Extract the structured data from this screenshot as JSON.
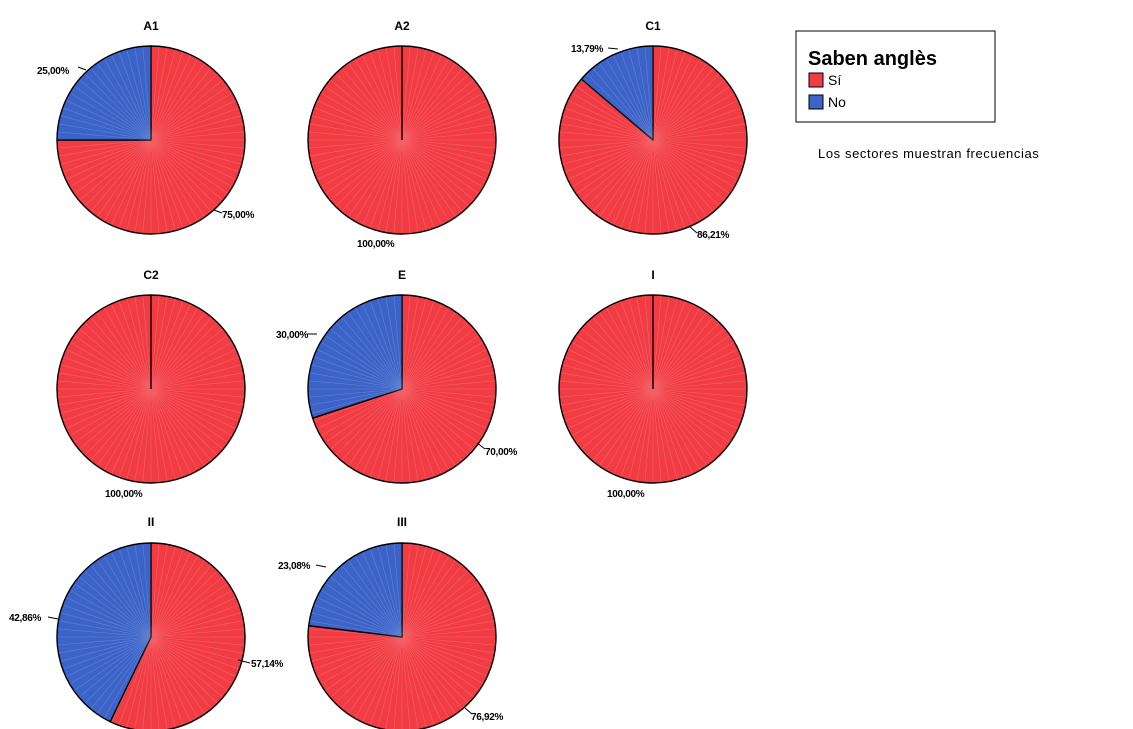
{
  "chart_data": {
    "type": "pie",
    "colors": {
      "Sí": "#f23c44",
      "No": "#3c64c8"
    },
    "legend": {
      "title": "Saben anglès",
      "placement": "top-right",
      "items": [
        {
          "label": "Sí",
          "color": "#f23c44"
        },
        {
          "label": "No",
          "color": "#3c64c8"
        }
      ]
    },
    "footnote": "Los sectores muestran frecuencias",
    "pies": [
      {
        "title": "A1",
        "slices": [
          {
            "category": "Sí",
            "value": 75.0,
            "label": "75,00%"
          },
          {
            "category": "No",
            "value": 25.0,
            "label": "25,00%"
          }
        ]
      },
      {
        "title": "A2",
        "slices": [
          {
            "category": "Sí",
            "value": 100.0,
            "label": "100,00%"
          }
        ]
      },
      {
        "title": "C1",
        "slices": [
          {
            "category": "Sí",
            "value": 86.21,
            "label": "86,21%"
          },
          {
            "category": "No",
            "value": 13.79,
            "label": "13,79%"
          }
        ]
      },
      {
        "title": "C2",
        "slices": [
          {
            "category": "Sí",
            "value": 100.0,
            "label": "100,00%"
          }
        ]
      },
      {
        "title": "E",
        "slices": [
          {
            "category": "Sí",
            "value": 70.0,
            "label": "70,00%"
          },
          {
            "category": "No",
            "value": 30.0,
            "label": "30,00%"
          }
        ]
      },
      {
        "title": "I",
        "slices": [
          {
            "category": "Sí",
            "value": 100.0,
            "label": "100,00%"
          }
        ]
      },
      {
        "title": "II",
        "slices": [
          {
            "category": "Sí",
            "value": 57.14,
            "label": "57,14%"
          },
          {
            "category": "No",
            "value": 42.86,
            "label": "42,86%"
          }
        ]
      },
      {
        "title": "III",
        "slices": [
          {
            "category": "Sí",
            "value": 76.92,
            "label": "76,92%"
          },
          {
            "category": "No",
            "value": 23.08,
            "label": "23,08%"
          }
        ]
      }
    ]
  }
}
